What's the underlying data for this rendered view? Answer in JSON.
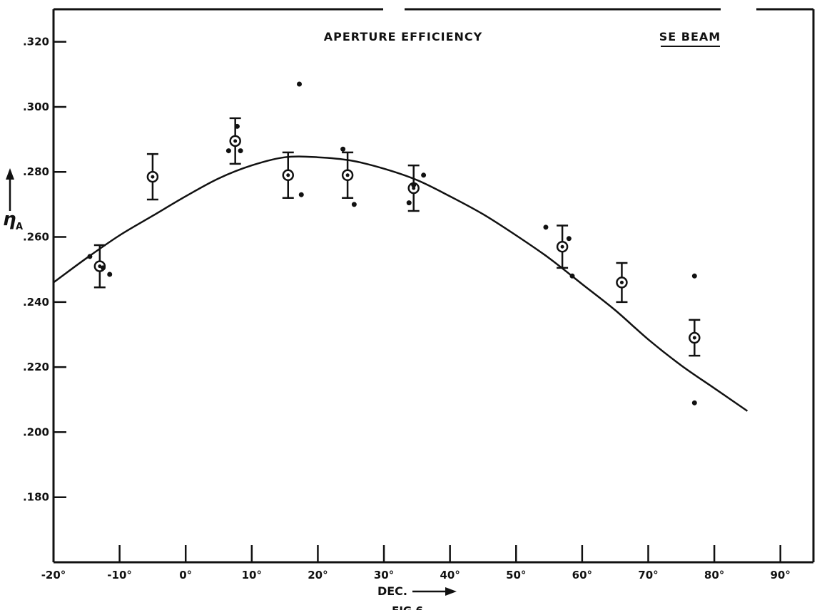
{
  "chart_data": {
    "type": "scatter",
    "title": "APERTURE EFFICIENCY",
    "subtitle": "SE BEAM",
    "xlabel": "DEC.",
    "ylabel": "η",
    "ylabel_subscript": "A",
    "caption": "FIG 6",
    "xlim": [
      -20,
      95
    ],
    "ylim": [
      0.16,
      0.33
    ],
    "grid": false,
    "x_ticks": [
      -20,
      -10,
      0,
      10,
      20,
      30,
      40,
      50,
      60,
      70,
      80,
      90
    ],
    "x_tick_labels": [
      "-20°",
      "-10°",
      "0°",
      "10°",
      "20°",
      "30°",
      "40°",
      "50°",
      "60°",
      "70°",
      "80°",
      "90°"
    ],
    "y_ticks": [
      0.18,
      0.2,
      0.22,
      0.24,
      0.26,
      0.28,
      0.3,
      0.32
    ],
    "y_tick_labels": [
      ".180",
      ".200",
      ".220",
      ".240",
      ".260",
      ".280",
      ".300",
      ".320"
    ],
    "series": [
      {
        "type": "mean_with_error",
        "points": [
          {
            "x": -13,
            "y": 0.251,
            "err": 0.0065
          },
          {
            "x": -5,
            "y": 0.2785,
            "err": 0.007
          },
          {
            "x": 7.5,
            "y": 0.2895,
            "err": 0.007
          },
          {
            "x": 15.5,
            "y": 0.279,
            "err": 0.007
          },
          {
            "x": 24.5,
            "y": 0.279,
            "err": 0.007
          },
          {
            "x": 34.5,
            "y": 0.275,
            "err": 0.007
          },
          {
            "x": 57,
            "y": 0.257,
            "err": 0.0065
          },
          {
            "x": 66,
            "y": 0.246,
            "err": 0.006
          },
          {
            "x": 77,
            "y": 0.229,
            "err": 0.0055
          }
        ]
      },
      {
        "type": "individual",
        "points": [
          {
            "x": -14.5,
            "y": 0.254
          },
          {
            "x": -12.5,
            "y": 0.2505
          },
          {
            "x": -11.5,
            "y": 0.2485
          },
          {
            "x": 6.5,
            "y": 0.2865
          },
          {
            "x": 7.8,
            "y": 0.294
          },
          {
            "x": 8.3,
            "y": 0.2865
          },
          {
            "x": 17.2,
            "y": 0.307
          },
          {
            "x": 17.5,
            "y": 0.273
          },
          {
            "x": 23.8,
            "y": 0.287
          },
          {
            "x": 25.5,
            "y": 0.27
          },
          {
            "x": 33.8,
            "y": 0.2705
          },
          {
            "x": 34.5,
            "y": 0.276
          },
          {
            "x": 36,
            "y": 0.279
          },
          {
            "x": 54.5,
            "y": 0.263
          },
          {
            "x": 58,
            "y": 0.2595
          },
          {
            "x": 58.5,
            "y": 0.248
          },
          {
            "x": 77,
            "y": 0.248
          },
          {
            "x": 77,
            "y": 0.209
          }
        ]
      },
      {
        "type": "fit_curve",
        "points": [
          {
            "x": -20,
            "y": 0.246
          },
          {
            "x": -15,
            "y": 0.2535
          },
          {
            "x": -10,
            "y": 0.2605
          },
          {
            "x": -5,
            "y": 0.2665
          },
          {
            "x": 0,
            "y": 0.2725
          },
          {
            "x": 5,
            "y": 0.278
          },
          {
            "x": 10,
            "y": 0.282
          },
          {
            "x": 15,
            "y": 0.2845
          },
          {
            "x": 20,
            "y": 0.2845
          },
          {
            "x": 25,
            "y": 0.2835
          },
          {
            "x": 30,
            "y": 0.281
          },
          {
            "x": 35,
            "y": 0.2775
          },
          {
            "x": 40,
            "y": 0.2725
          },
          {
            "x": 45,
            "y": 0.267
          },
          {
            "x": 50,
            "y": 0.2605
          },
          {
            "x": 55,
            "y": 0.2535
          },
          {
            "x": 60,
            "y": 0.2455
          },
          {
            "x": 65,
            "y": 0.2375
          },
          {
            "x": 70,
            "y": 0.2285
          },
          {
            "x": 75,
            "y": 0.2205
          },
          {
            "x": 80,
            "y": 0.2135
          },
          {
            "x": 85,
            "y": 0.2065
          }
        ]
      }
    ]
  }
}
